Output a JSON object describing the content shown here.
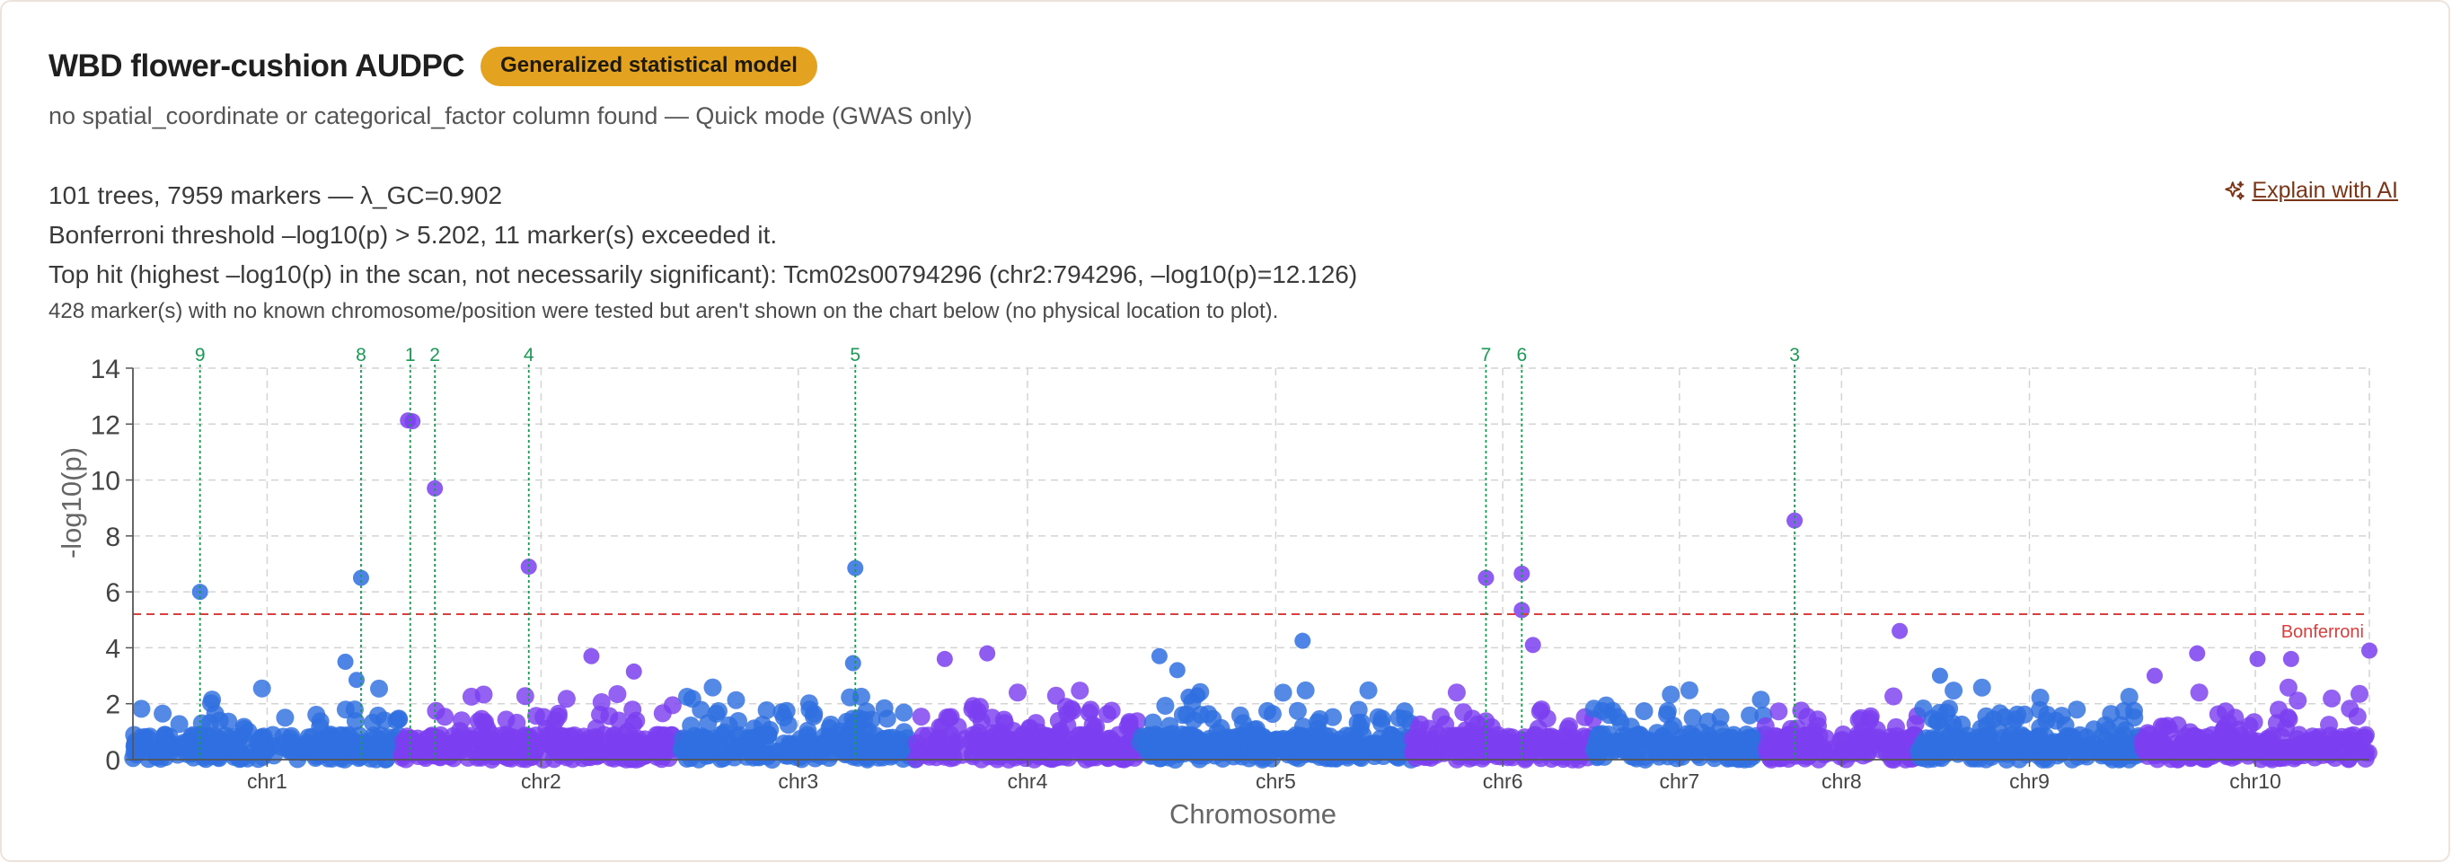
{
  "header": {
    "title": "WBD flower-cushion AUDPC",
    "badge": "Generalized statistical model",
    "subtitle": "no spatial_coordinate or categorical_factor column found — Quick mode (GWAS only)",
    "explain_label": "Explain with AI"
  },
  "stats": {
    "line1": "101 trees, 7959 markers — λ_GC=0.902",
    "line2": "Bonferroni threshold –log10(p) > 5.202, 11 marker(s) exceeded it.",
    "line3": "Top hit (highest –log10(p) in the scan, not necessarily significant): Tcm02s00794296 (chr2:794296, –log10(p)=12.126)",
    "line4": "428 marker(s) with no known chromosome/position were tested but aren't shown on the chart below (no physical location to plot)."
  },
  "colors": {
    "blue": "#2f6fe0",
    "purple": "#7b3ff0",
    "threshold": "#d84040",
    "hit": "#1a9a55"
  },
  "chart_data": {
    "type": "scatter",
    "xlabel": "Chromosome",
    "ylabel": "-log10(p)",
    "ylim": [
      0,
      14
    ],
    "yticks": [
      0,
      2,
      4,
      6,
      8,
      10,
      12,
      14
    ],
    "threshold": {
      "value": 5.202,
      "label": "Bonferroni"
    },
    "chromosomes": [
      {
        "name": "chr1",
        "start": 0.0,
        "end": 1.2,
        "color": "blue"
      },
      {
        "name": "chr2",
        "start": 1.2,
        "end": 2.45,
        "color": "purple"
      },
      {
        "name": "chr3",
        "start": 2.45,
        "end": 3.5,
        "color": "blue"
      },
      {
        "name": "chr4",
        "start": 3.5,
        "end": 4.5,
        "color": "purple"
      },
      {
        "name": "chr5",
        "start": 4.5,
        "end": 5.72,
        "color": "blue"
      },
      {
        "name": "chr6",
        "start": 5.72,
        "end": 6.53,
        "color": "purple"
      },
      {
        "name": "chr7",
        "start": 6.53,
        "end": 7.3,
        "color": "blue"
      },
      {
        "name": "chr8",
        "start": 7.3,
        "end": 7.98,
        "color": "purple"
      },
      {
        "name": "chr9",
        "start": 7.98,
        "end": 8.98,
        "color": "blue"
      },
      {
        "name": "chr10",
        "start": 8.98,
        "end": 10.0,
        "color": "purple"
      }
    ],
    "hits": [
      {
        "label": "9",
        "x": 0.3,
        "y": 6.0
      },
      {
        "label": "8",
        "x": 1.02,
        "y": 6.5
      },
      {
        "label": "1",
        "x": 1.24,
        "y": 12.13
      },
      {
        "label": "2",
        "x": 1.35,
        "y": 9.7
      },
      {
        "label": "4",
        "x": 1.77,
        "y": 6.9
      },
      {
        "label": "5",
        "x": 3.23,
        "y": 6.85
      },
      {
        "label": "7",
        "x": 6.05,
        "y": 6.5
      },
      {
        "label": "6",
        "x": 6.21,
        "y": 6.65
      },
      {
        "label": "3",
        "x": 7.43,
        "y": 8.55
      }
    ],
    "highlights": [
      {
        "x": 0.3,
        "y": 6.0
      },
      {
        "x": 1.02,
        "y": 6.5
      },
      {
        "x": 0.95,
        "y": 3.5
      },
      {
        "x": 1.0,
        "y": 2.85
      },
      {
        "x": 1.23,
        "y": 12.13
      },
      {
        "x": 1.25,
        "y": 12.1
      },
      {
        "x": 1.35,
        "y": 9.7
      },
      {
        "x": 1.77,
        "y": 6.9
      },
      {
        "x": 3.23,
        "y": 6.85
      },
      {
        "x": 3.22,
        "y": 3.45
      },
      {
        "x": 6.05,
        "y": 6.5
      },
      {
        "x": 6.21,
        "y": 6.65
      },
      {
        "x": 6.21,
        "y": 5.35
      },
      {
        "x": 6.26,
        "y": 4.1
      },
      {
        "x": 7.43,
        "y": 8.55
      },
      {
        "x": 5.23,
        "y": 4.25
      },
      {
        "x": 4.59,
        "y": 3.7
      },
      {
        "x": 3.82,
        "y": 3.8
      },
      {
        "x": 3.63,
        "y": 3.6
      },
      {
        "x": 7.9,
        "y": 4.6
      },
      {
        "x": 8.08,
        "y": 3.0
      },
      {
        "x": 10.0,
        "y": 3.9
      },
      {
        "x": 9.5,
        "y": 3.6
      },
      {
        "x": 9.23,
        "y": 3.8
      },
      {
        "x": 9.65,
        "y": 3.6
      },
      {
        "x": 9.04,
        "y": 3.0
      },
      {
        "x": 2.05,
        "y": 3.7
      },
      {
        "x": 2.24,
        "y": 3.15
      },
      {
        "x": 4.67,
        "y": 3.2
      },
      {
        "x": 4.72,
        "y": 2.25
      },
      {
        "x": 4.76,
        "y": 2.3
      }
    ]
  }
}
